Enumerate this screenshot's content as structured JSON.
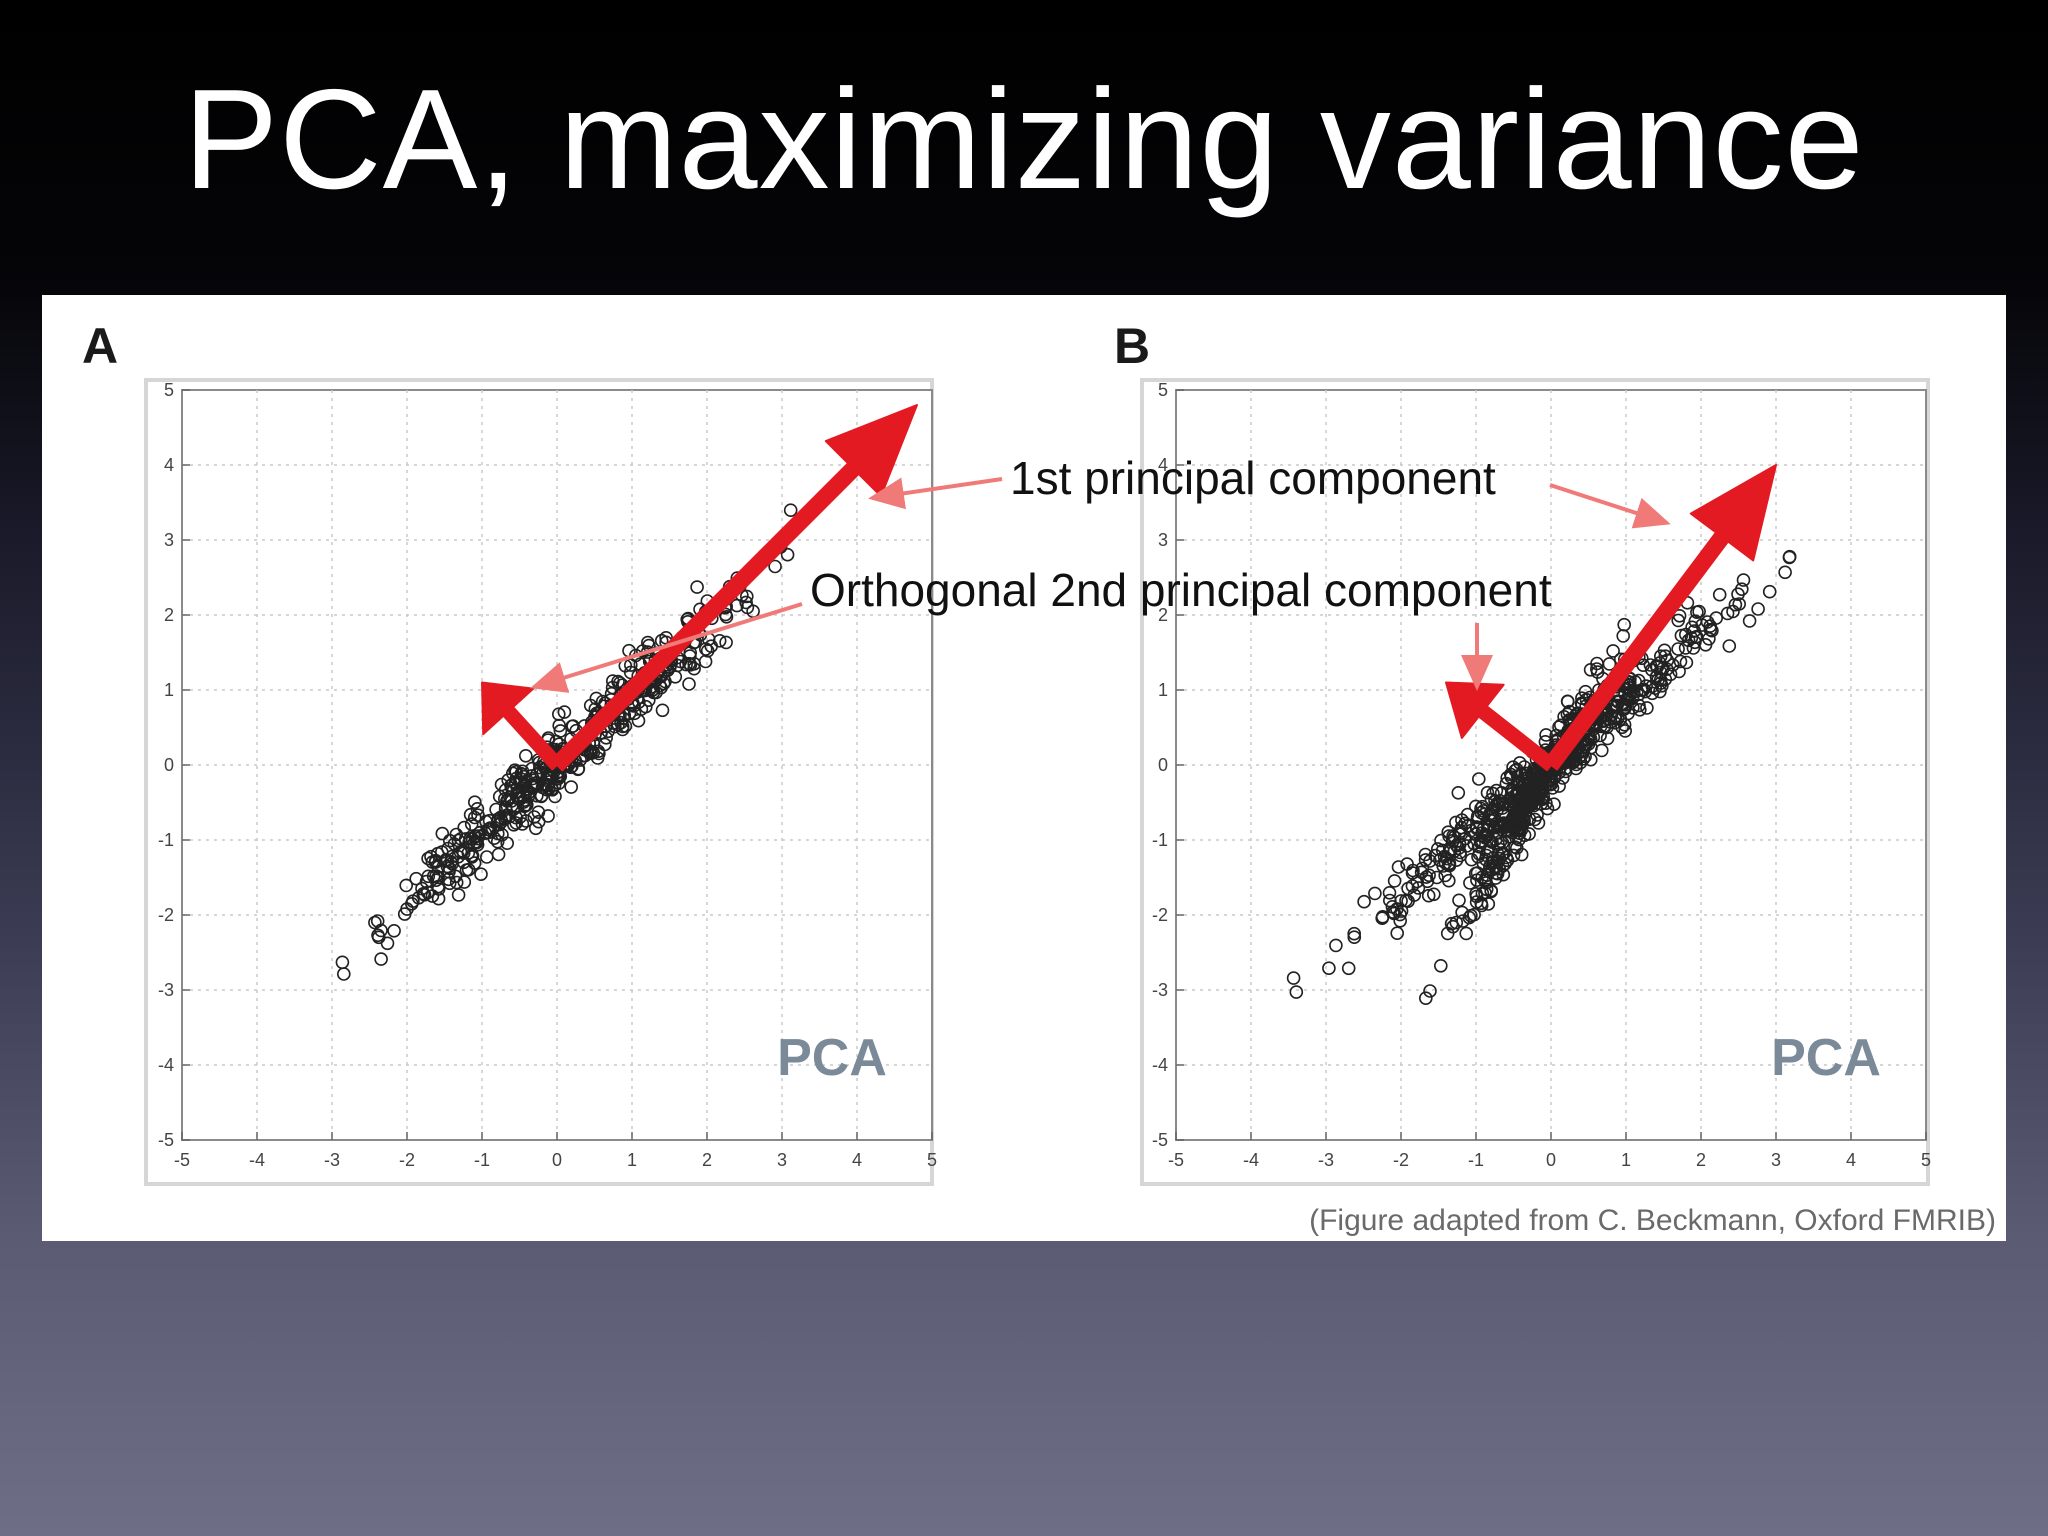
{
  "slide": {
    "title": "PCA, maximizing variance"
  },
  "figure": {
    "caption": "(Figure adapted from C. Beckmann, Oxford FMRIB)",
    "annotations": {
      "first_pc": "1st principal component",
      "second_pc": "Orthogonal 2nd principal component"
    },
    "colors": {
      "arrow": "#e41a22",
      "callout": "#f07a78",
      "marker": "#222222",
      "grid": "#c8c8c8",
      "method_label": "#7a8a98"
    }
  },
  "chart_data": [
    {
      "type": "scatter",
      "panel_label": "A",
      "method_label": "PCA",
      "xlim": [
        -5,
        5
      ],
      "ylim": [
        -5,
        5
      ],
      "x_ticks": [
        "-5",
        "-4",
        "-3",
        "-2",
        "-1",
        "0",
        "1",
        "2",
        "3",
        "4",
        "5"
      ],
      "y_ticks": [
        "-5",
        "-4",
        "-3",
        "-2",
        "-1",
        "0",
        "1",
        "2",
        "3",
        "4",
        "5"
      ],
      "grid": true,
      "marker": "open-circle",
      "clusters": [
        {
          "slope": 0.92,
          "x_range": [
            -3.6,
            3.7
          ],
          "spread": 0.22
        }
      ],
      "principal_components": {
        "first": {
          "from": [
            0,
            0
          ],
          "to": [
            4.8,
            4.8
          ]
        },
        "second": {
          "from": [
            0,
            0
          ],
          "to": [
            -1.0,
            1.1
          ]
        }
      },
      "title": "",
      "xlabel": "",
      "ylabel": ""
    },
    {
      "type": "scatter",
      "panel_label": "B",
      "method_label": "PCA",
      "xlim": [
        -5,
        5
      ],
      "ylim": [
        -5,
        5
      ],
      "x_ticks": [
        "-5",
        "-4",
        "-3",
        "-2",
        "-1",
        "0",
        "1",
        "2",
        "3",
        "4",
        "5"
      ],
      "y_ticks": [
        "-5",
        "-4",
        "-3",
        "-2",
        "-1",
        "0",
        "1",
        "2",
        "3",
        "4",
        "5"
      ],
      "grid": true,
      "marker": "open-circle",
      "clusters": [
        {
          "slope": 0.88,
          "x_range": [
            -3.6,
            3.7
          ],
          "spread": 0.2
        },
        {
          "slope": 1.7,
          "x_range": [
            -1.8,
            1.3
          ],
          "spread": 0.18
        }
      ],
      "principal_components": {
        "first": {
          "from": [
            0,
            0
          ],
          "to": [
            3.0,
            4.0
          ]
        },
        "second": {
          "from": [
            0,
            0
          ],
          "to": [
            -1.4,
            1.1
          ]
        }
      },
      "title": "",
      "xlabel": "",
      "ylabel": ""
    }
  ]
}
